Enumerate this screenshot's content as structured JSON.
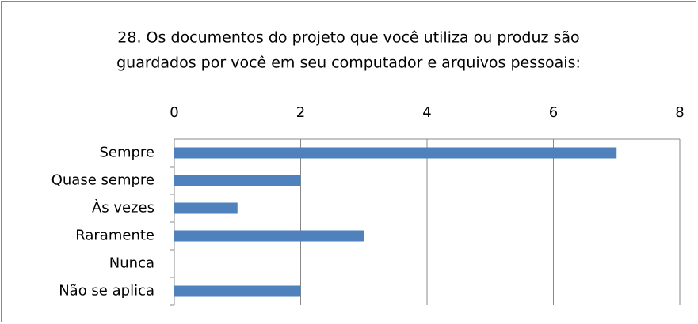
{
  "chart_data": {
    "type": "bar",
    "orientation": "horizontal",
    "title": [
      "28. Os documentos do projeto que você utiliza ou produz são",
      "guardados por você em seu computador e arquivos pessoais:"
    ],
    "categories": [
      "Sempre",
      "Quase sempre",
      "Às vezes",
      "Raramente",
      "Nunca",
      "Não se aplica"
    ],
    "values": [
      7,
      2,
      1,
      3,
      0,
      2
    ],
    "color": "#4f81bd",
    "xlim": [
      0,
      8
    ],
    "xticks": [
      0,
      2,
      4,
      6,
      8
    ],
    "grid": true
  }
}
